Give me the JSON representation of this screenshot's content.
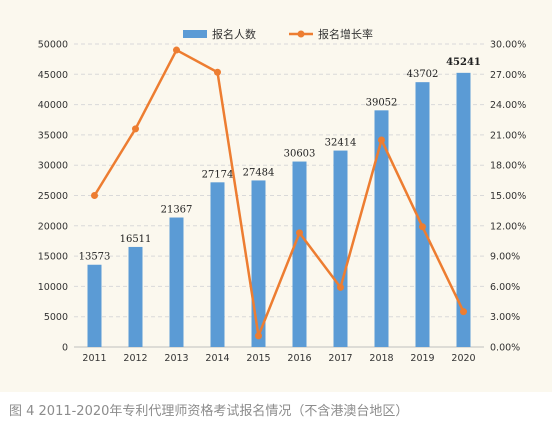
{
  "chart_data": {
    "type": "bar+line",
    "categories": [
      "2011",
      "2012",
      "2013",
      "2014",
      "2015",
      "2016",
      "2017",
      "2018",
      "2019",
      "2020"
    ],
    "series": [
      {
        "name": "报名人数",
        "type": "bar",
        "axis": "left",
        "values": [
          13573,
          16511,
          21367,
          27174,
          27484,
          30603,
          32414,
          39052,
          43702,
          45241
        ],
        "labels": [
          "13573",
          "16511",
          "21367",
          "27174",
          "27484",
          "30603",
          "32414",
          "39052",
          "43702",
          "45241"
        ],
        "color": "#5b9bd5"
      },
      {
        "name": "报名增长率",
        "type": "line",
        "axis": "right",
        "values": [
          15.0,
          21.6,
          29.4,
          27.2,
          1.1,
          11.3,
          5.9,
          20.5,
          11.9,
          3.5
        ],
        "color": "#ed7d31"
      }
    ],
    "y_left": {
      "min": 0,
      "max": 50000,
      "step": 5000,
      "ticks": [
        "0",
        "5000",
        "10000",
        "15000",
        "20000",
        "25000",
        "30000",
        "35000",
        "40000",
        "45000",
        "50000"
      ]
    },
    "y_right": {
      "min": 0,
      "max": 30,
      "step": 3,
      "ticks": [
        "0.00%",
        "3.00%",
        "6.00%",
        "9.00%",
        "12.00%",
        "15.00%",
        "18.00%",
        "21.00%",
        "24.00%",
        "27.00%",
        "30.00%"
      ]
    },
    "legend_position": "top-center",
    "highlight": {
      "index": 9,
      "color": "#ff0000"
    },
    "grid": true
  },
  "caption": "图 4 2011-2020年专利代理师资格考试报名情况（不含港澳台地区）"
}
